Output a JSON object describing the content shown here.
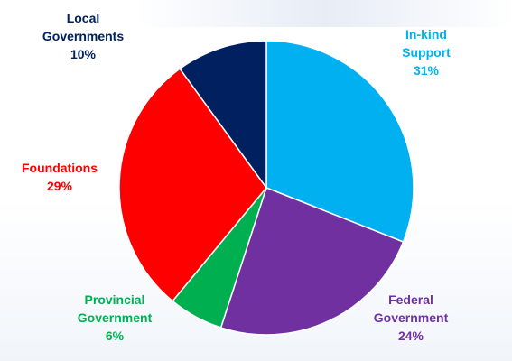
{
  "chart_data": {
    "type": "pie",
    "start_angle_deg": 0,
    "direction": "clockwise",
    "slices": [
      {
        "name_lines": [
          "In-kind",
          "Support"
        ],
        "value": 31,
        "label": "31%",
        "color": "#00b0f0",
        "label_color": "#00b0f0"
      },
      {
        "name_lines": [
          "Federal",
          "Government"
        ],
        "value": 24,
        "label": "24%",
        "color": "#7030a0",
        "label_color": "#7030a0"
      },
      {
        "name_lines": [
          "Provincial",
          "Government"
        ],
        "value": 6,
        "label": "6%",
        "color": "#00b050",
        "label_color": "#00b050"
      },
      {
        "name_lines": [
          "Foundations"
        ],
        "value": 29,
        "label": "29%",
        "color": "#ff0000",
        "label_color": "#ff0000"
      },
      {
        "name_lines": [
          "Local",
          "Governments"
        ],
        "value": 10,
        "label": "10%",
        "color": "#002060",
        "label_color": "#002060"
      }
    ],
    "slice_border_color": "#ffffff"
  }
}
